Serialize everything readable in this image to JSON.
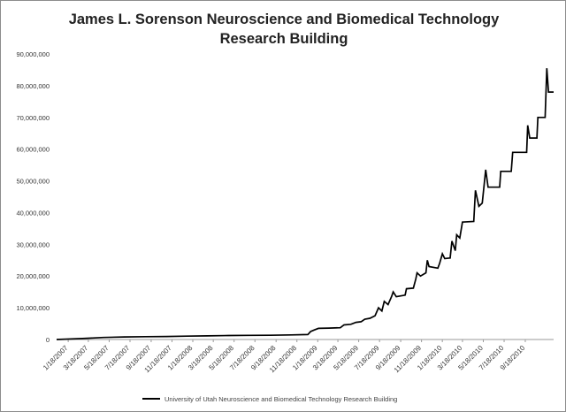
{
  "chart_data": {
    "type": "line",
    "title": "James L. Sorenson Neuroscience and Biomedical Technology Research Building",
    "xlabel": "",
    "ylabel": "",
    "ylim": [
      0,
      90000000
    ],
    "y_ticks": [
      "0",
      "10,000,000",
      "20,000,000",
      "30,000,000",
      "40,000,000",
      "50,000,000",
      "60,000,000",
      "70,000,000",
      "80,000,000",
      "90,000,000"
    ],
    "x_ticks": [
      "1/18/2007",
      "3/18/2007",
      "5/18/2007",
      "7/18/2007",
      "9/18/2007",
      "11/18/2007",
      "1/18/2008",
      "3/18/2008",
      "5/18/2008",
      "7/18/2008",
      "9/18/2008",
      "11/18/2008",
      "1/18/2009",
      "3/18/2009",
      "5/18/2009",
      "7/18/2009",
      "9/18/2009",
      "11/18/2009",
      "1/18/2010",
      "3/18/2010",
      "5/18/2010",
      "7/18/2010",
      "9/18/2010"
    ],
    "grid": false,
    "legend_position": "bottom",
    "series": [
      {
        "name": "University of Utah Neuroscience and Biomedical Technology Research Building",
        "color": "#000000",
        "points": [
          [
            "2006-12-15",
            0
          ],
          [
            "2007-03-01",
            300000
          ],
          [
            "2007-05-01",
            650000
          ],
          [
            "2007-07-01",
            800000
          ],
          [
            "2007-09-01",
            900000
          ],
          [
            "2007-11-01",
            950000
          ],
          [
            "2008-01-01",
            1050000
          ],
          [
            "2008-03-01",
            1150000
          ],
          [
            "2008-05-01",
            1250000
          ],
          [
            "2008-07-01",
            1300000
          ],
          [
            "2008-09-01",
            1350000
          ],
          [
            "2008-11-01",
            1450000
          ],
          [
            "2008-12-20",
            1550000
          ],
          [
            "2008-12-28",
            2500000
          ],
          [
            "2009-01-08",
            3000000
          ],
          [
            "2009-01-20",
            3500000
          ],
          [
            "2009-02-20",
            3600000
          ],
          [
            "2009-03-25",
            3700000
          ],
          [
            "2009-04-05",
            4600000
          ],
          [
            "2009-04-25",
            4800000
          ],
          [
            "2009-05-10",
            5400000
          ],
          [
            "2009-05-25",
            5600000
          ],
          [
            "2009-06-05",
            6400000
          ],
          [
            "2009-06-20",
            6700000
          ],
          [
            "2009-07-05",
            7500000
          ],
          [
            "2009-07-15",
            10000000
          ],
          [
            "2009-07-25",
            9000000
          ],
          [
            "2009-08-01",
            12000000
          ],
          [
            "2009-08-12",
            11000000
          ],
          [
            "2009-08-22",
            13500000
          ],
          [
            "2009-08-27",
            15000000
          ],
          [
            "2009-09-05",
            13500000
          ],
          [
            "2009-10-01",
            14000000
          ],
          [
            "2009-10-05",
            16000000
          ],
          [
            "2009-10-25",
            16200000
          ],
          [
            "2009-11-01",
            19000000
          ],
          [
            "2009-11-05",
            21000000
          ],
          [
            "2009-11-15",
            20000000
          ],
          [
            "2009-12-01",
            21000000
          ],
          [
            "2009-12-05",
            25000000
          ],
          [
            "2009-12-10",
            23000000
          ],
          [
            "2010-01-05",
            22500000
          ],
          [
            "2010-01-10",
            24000000
          ],
          [
            "2010-01-18",
            27000000
          ],
          [
            "2010-01-25",
            25500000
          ],
          [
            "2010-02-10",
            25700000
          ],
          [
            "2010-02-15",
            31000000
          ],
          [
            "2010-02-25",
            28000000
          ],
          [
            "2010-03-01",
            33000000
          ],
          [
            "2010-03-10",
            32000000
          ],
          [
            "2010-03-18",
            37000000
          ],
          [
            "2010-04-20",
            37200000
          ],
          [
            "2010-04-25",
            47000000
          ],
          [
            "2010-05-05",
            42000000
          ],
          [
            "2010-05-15",
            43000000
          ],
          [
            "2010-05-25",
            53500000
          ],
          [
            "2010-06-01",
            48000000
          ],
          [
            "2010-07-05",
            48000000
          ],
          [
            "2010-07-08",
            53000000
          ],
          [
            "2010-08-08",
            53000000
          ],
          [
            "2010-08-12",
            59000000
          ],
          [
            "2010-09-22",
            59000000
          ],
          [
            "2010-09-25",
            67500000
          ],
          [
            "2010-10-01",
            63500000
          ],
          [
            "2010-10-22",
            63500000
          ],
          [
            "2010-10-25",
            70000000
          ],
          [
            "2010-11-15",
            70000000
          ],
          [
            "2010-11-20",
            85500000
          ],
          [
            "2010-11-25",
            78000000
          ],
          [
            "2010-12-10",
            78000000
          ]
        ]
      }
    ]
  }
}
